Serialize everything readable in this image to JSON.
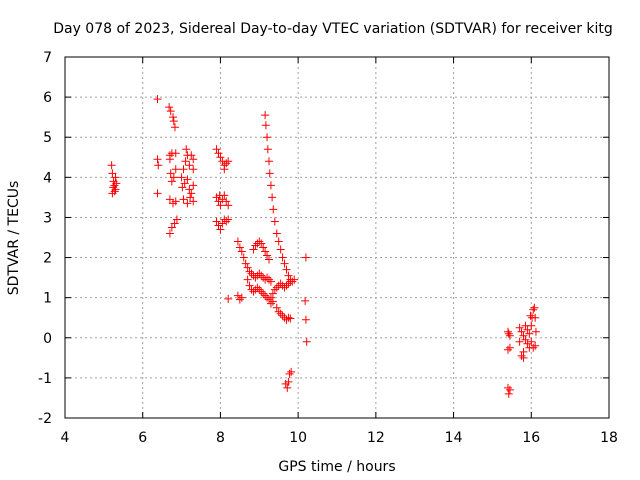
{
  "chart_data": {
    "type": "scatter",
    "title": "Day 078 of 2023, Sidereal Day-to-day VTEC variation (SDTVAR) for receiver kitg",
    "xlabel": "GPS time / hours",
    "ylabel": "SDTVAR / TECUs",
    "xlim": [
      4,
      18
    ],
    "ylim": [
      -2,
      7
    ],
    "xticks": [
      4,
      6,
      8,
      10,
      12,
      14,
      16,
      18
    ],
    "yticks": [
      -2,
      -1,
      0,
      1,
      2,
      3,
      4,
      5,
      6,
      7
    ],
    "grid": true,
    "marker": "+",
    "color": "#ff0000",
    "series": [
      {
        "name": "SDTVAR",
        "points": [
          [
            5.2,
            4.3
          ],
          [
            5.22,
            4.1
          ],
          [
            5.25,
            3.9
          ],
          [
            5.27,
            3.8
          ],
          [
            5.3,
            3.7
          ],
          [
            5.22,
            3.6
          ],
          [
            5.3,
            4.0
          ],
          [
            5.28,
            3.65
          ],
          [
            5.24,
            3.75
          ],
          [
            5.32,
            3.85
          ],
          [
            6.38,
            5.95
          ],
          [
            6.38,
            4.45
          ],
          [
            6.4,
            4.3
          ],
          [
            6.38,
            3.6
          ],
          [
            6.68,
            5.75
          ],
          [
            6.72,
            5.65
          ],
          [
            6.78,
            5.5
          ],
          [
            6.8,
            5.4
          ],
          [
            6.83,
            5.25
          ],
          [
            6.7,
            4.55
          ],
          [
            6.75,
            4.6
          ],
          [
            6.85,
            4.6
          ],
          [
            6.7,
            4.45
          ],
          [
            6.72,
            4.1
          ],
          [
            6.8,
            4.0
          ],
          [
            6.75,
            3.9
          ],
          [
            6.85,
            4.2
          ],
          [
            6.7,
            3.45
          ],
          [
            6.78,
            3.35
          ],
          [
            6.85,
            3.4
          ],
          [
            6.7,
            2.6
          ],
          [
            6.75,
            2.75
          ],
          [
            6.82,
            2.85
          ],
          [
            6.88,
            2.95
          ],
          [
            7.0,
            4.0
          ],
          [
            7.05,
            4.2
          ],
          [
            7.1,
            4.4
          ],
          [
            7.12,
            4.7
          ],
          [
            7.15,
            4.55
          ],
          [
            7.2,
            4.3
          ],
          [
            7.25,
            4.55
          ],
          [
            7.3,
            4.45
          ],
          [
            7.3,
            4.2
          ],
          [
            7.02,
            3.75
          ],
          [
            7.08,
            3.85
          ],
          [
            7.15,
            3.95
          ],
          [
            7.2,
            3.7
          ],
          [
            7.25,
            3.6
          ],
          [
            7.3,
            3.8
          ],
          [
            7.05,
            3.45
          ],
          [
            7.15,
            3.35
          ],
          [
            7.22,
            3.5
          ],
          [
            7.3,
            3.4
          ],
          [
            7.9,
            4.7
          ],
          [
            7.95,
            4.6
          ],
          [
            8.0,
            4.5
          ],
          [
            8.05,
            4.4
          ],
          [
            8.1,
            4.3
          ],
          [
            8.15,
            4.35
          ],
          [
            8.2,
            4.4
          ],
          [
            8.1,
            4.2
          ],
          [
            7.9,
            3.5
          ],
          [
            7.95,
            3.4
          ],
          [
            8.0,
            3.3
          ],
          [
            8.05,
            3.45
          ],
          [
            8.1,
            3.55
          ],
          [
            8.15,
            3.4
          ],
          [
            8.2,
            3.3
          ],
          [
            7.98,
            3.55
          ],
          [
            7.9,
            2.9
          ],
          [
            7.95,
            2.8
          ],
          [
            8.0,
            2.7
          ],
          [
            8.05,
            2.85
          ],
          [
            8.1,
            2.95
          ],
          [
            8.15,
            2.9
          ],
          [
            8.2,
            2.95
          ],
          [
            8.2,
            0.97
          ],
          [
            8.45,
            1.05
          ],
          [
            8.5,
            0.95
          ],
          [
            8.55,
            1.0
          ],
          [
            8.45,
            2.4
          ],
          [
            8.5,
            2.25
          ],
          [
            8.55,
            2.15
          ],
          [
            8.6,
            2.0
          ],
          [
            8.65,
            1.85
          ],
          [
            8.7,
            1.75
          ],
          [
            8.75,
            1.65
          ],
          [
            8.8,
            1.6
          ],
          [
            8.85,
            1.55
          ],
          [
            8.9,
            1.5
          ],
          [
            8.95,
            1.55
          ],
          [
            9.0,
            1.6
          ],
          [
            9.05,
            1.55
          ],
          [
            9.1,
            1.5
          ],
          [
            9.15,
            1.45
          ],
          [
            9.2,
            1.5
          ],
          [
            9.25,
            1.45
          ],
          [
            9.3,
            1.4
          ],
          [
            8.7,
            1.45
          ],
          [
            8.75,
            1.3
          ],
          [
            8.8,
            1.2
          ],
          [
            8.85,
            1.15
          ],
          [
            8.9,
            1.2
          ],
          [
            8.95,
            1.25
          ],
          [
            9.0,
            1.2
          ],
          [
            9.05,
            1.15
          ],
          [
            9.1,
            1.1
          ],
          [
            9.15,
            1.05
          ],
          [
            9.2,
            1.0
          ],
          [
            9.25,
            0.95
          ],
          [
            9.3,
            1.0
          ],
          [
            9.35,
            1.1
          ],
          [
            9.4,
            1.2
          ],
          [
            9.45,
            1.25
          ],
          [
            9.5,
            1.3
          ],
          [
            9.55,
            1.35
          ],
          [
            9.6,
            1.3
          ],
          [
            9.65,
            1.25
          ],
          [
            9.7,
            1.3
          ],
          [
            9.75,
            1.35
          ],
          [
            9.8,
            1.4
          ],
          [
            8.85,
            2.2
          ],
          [
            8.9,
            2.3
          ],
          [
            8.95,
            2.35
          ],
          [
            9.0,
            2.4
          ],
          [
            9.05,
            2.35
          ],
          [
            9.1,
            2.25
          ],
          [
            9.15,
            2.15
          ],
          [
            9.2,
            2.05
          ],
          [
            9.25,
            1.95
          ],
          [
            9.3,
            0.85
          ],
          [
            9.35,
            0.9
          ],
          [
            9.45,
            0.75
          ],
          [
            9.5,
            0.65
          ],
          [
            9.55,
            0.6
          ],
          [
            9.6,
            0.55
          ],
          [
            9.65,
            0.5
          ],
          [
            9.7,
            0.45
          ],
          [
            9.75,
            0.5
          ],
          [
            9.8,
            0.48
          ],
          [
            9.15,
            5.55
          ],
          [
            9.17,
            5.3
          ],
          [
            9.2,
            5.0
          ],
          [
            9.22,
            4.7
          ],
          [
            9.25,
            4.4
          ],
          [
            9.27,
            4.1
          ],
          [
            9.3,
            3.8
          ],
          [
            9.33,
            3.5
          ],
          [
            9.36,
            3.2
          ],
          [
            9.4,
            2.9
          ],
          [
            9.45,
            2.6
          ],
          [
            9.5,
            2.4
          ],
          [
            9.55,
            2.2
          ],
          [
            9.6,
            2.0
          ],
          [
            9.65,
            1.85
          ],
          [
            9.7,
            1.7
          ],
          [
            9.75,
            1.55
          ],
          [
            9.8,
            1.45
          ],
          [
            9.85,
            1.4
          ],
          [
            9.9,
            1.45
          ],
          [
            9.68,
            -1.15
          ],
          [
            9.72,
            -1.25
          ],
          [
            9.75,
            -1.1
          ],
          [
            9.78,
            -0.9
          ],
          [
            9.82,
            -0.85
          ],
          [
            10.2,
            2.0
          ],
          [
            10.18,
            0.92
          ],
          [
            10.2,
            0.45
          ],
          [
            10.22,
            -0.1
          ],
          [
            15.4,
            0.15
          ],
          [
            15.42,
            0.1
          ],
          [
            15.45,
            0.05
          ],
          [
            15.4,
            -0.3
          ],
          [
            15.45,
            -0.25
          ],
          [
            15.4,
            -1.25
          ],
          [
            15.42,
            -1.4
          ],
          [
            15.45,
            -1.3
          ],
          [
            15.7,
            0.25
          ],
          [
            15.75,
            0.15
          ],
          [
            15.8,
            0.05
          ],
          [
            15.85,
            -0.05
          ],
          [
            15.9,
            -0.15
          ],
          [
            15.95,
            -0.25
          ],
          [
            15.9,
            0.2
          ],
          [
            15.85,
            0.3
          ],
          [
            15.8,
            -0.35
          ],
          [
            15.75,
            -0.45
          ],
          [
            15.8,
            -0.5
          ],
          [
            15.7,
            -0.1
          ],
          [
            15.95,
            0.1
          ],
          [
            16.0,
            0.3
          ],
          [
            16.02,
            0.5
          ],
          [
            16.05,
            0.7
          ],
          [
            16.08,
            0.75
          ],
          [
            16.0,
            -0.1
          ],
          [
            16.05,
            -0.25
          ],
          [
            16.1,
            -0.2
          ],
          [
            16.12,
            0.15
          ],
          [
            16.1,
            0.5
          ],
          [
            15.98,
            0.55
          ]
        ]
      }
    ]
  }
}
